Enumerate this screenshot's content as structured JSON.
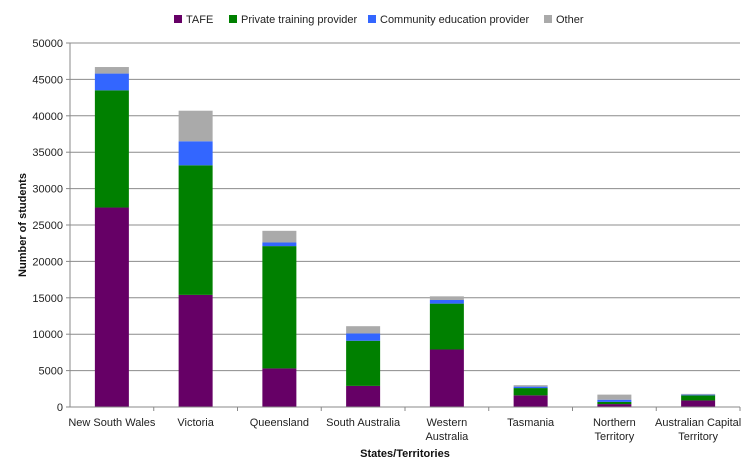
{
  "chart_data": {
    "type": "bar",
    "stacked": true,
    "title": "",
    "xlabel": "States/Territories",
    "ylabel": "Number of students",
    "ylim": [
      0,
      50000
    ],
    "yticks": [
      0,
      5000,
      10000,
      15000,
      20000,
      25000,
      30000,
      35000,
      40000,
      45000,
      50000
    ],
    "grid": true,
    "legend_position": "top",
    "categories": [
      [
        "New South Wales"
      ],
      [
        "Victoria"
      ],
      [
        "Queensland"
      ],
      [
        "South Australia"
      ],
      [
        "Western",
        "Australia"
      ],
      [
        "Tasmania"
      ],
      [
        "Northern",
        "Territory"
      ],
      [
        "Australian Capital",
        "Territory"
      ]
    ],
    "series": [
      {
        "name": "TAFE",
        "color": "#660066",
        "values": [
          27400,
          15400,
          5300,
          2900,
          7900,
          1600,
          400,
          900
        ]
      },
      {
        "name": "Private training provider",
        "color": "#008000",
        "values": [
          16100,
          17800,
          16800,
          6200,
          6300,
          1000,
          300,
          700
        ]
      },
      {
        "name": "Community education provider",
        "color": "#3366ff",
        "values": [
          2300,
          3300,
          500,
          1000,
          500,
          200,
          300,
          100
        ]
      },
      {
        "name": "Other",
        "color": "#aaaaaa",
        "values": [
          900,
          4200,
          1600,
          1000,
          500,
          200,
          700,
          100
        ]
      }
    ]
  }
}
